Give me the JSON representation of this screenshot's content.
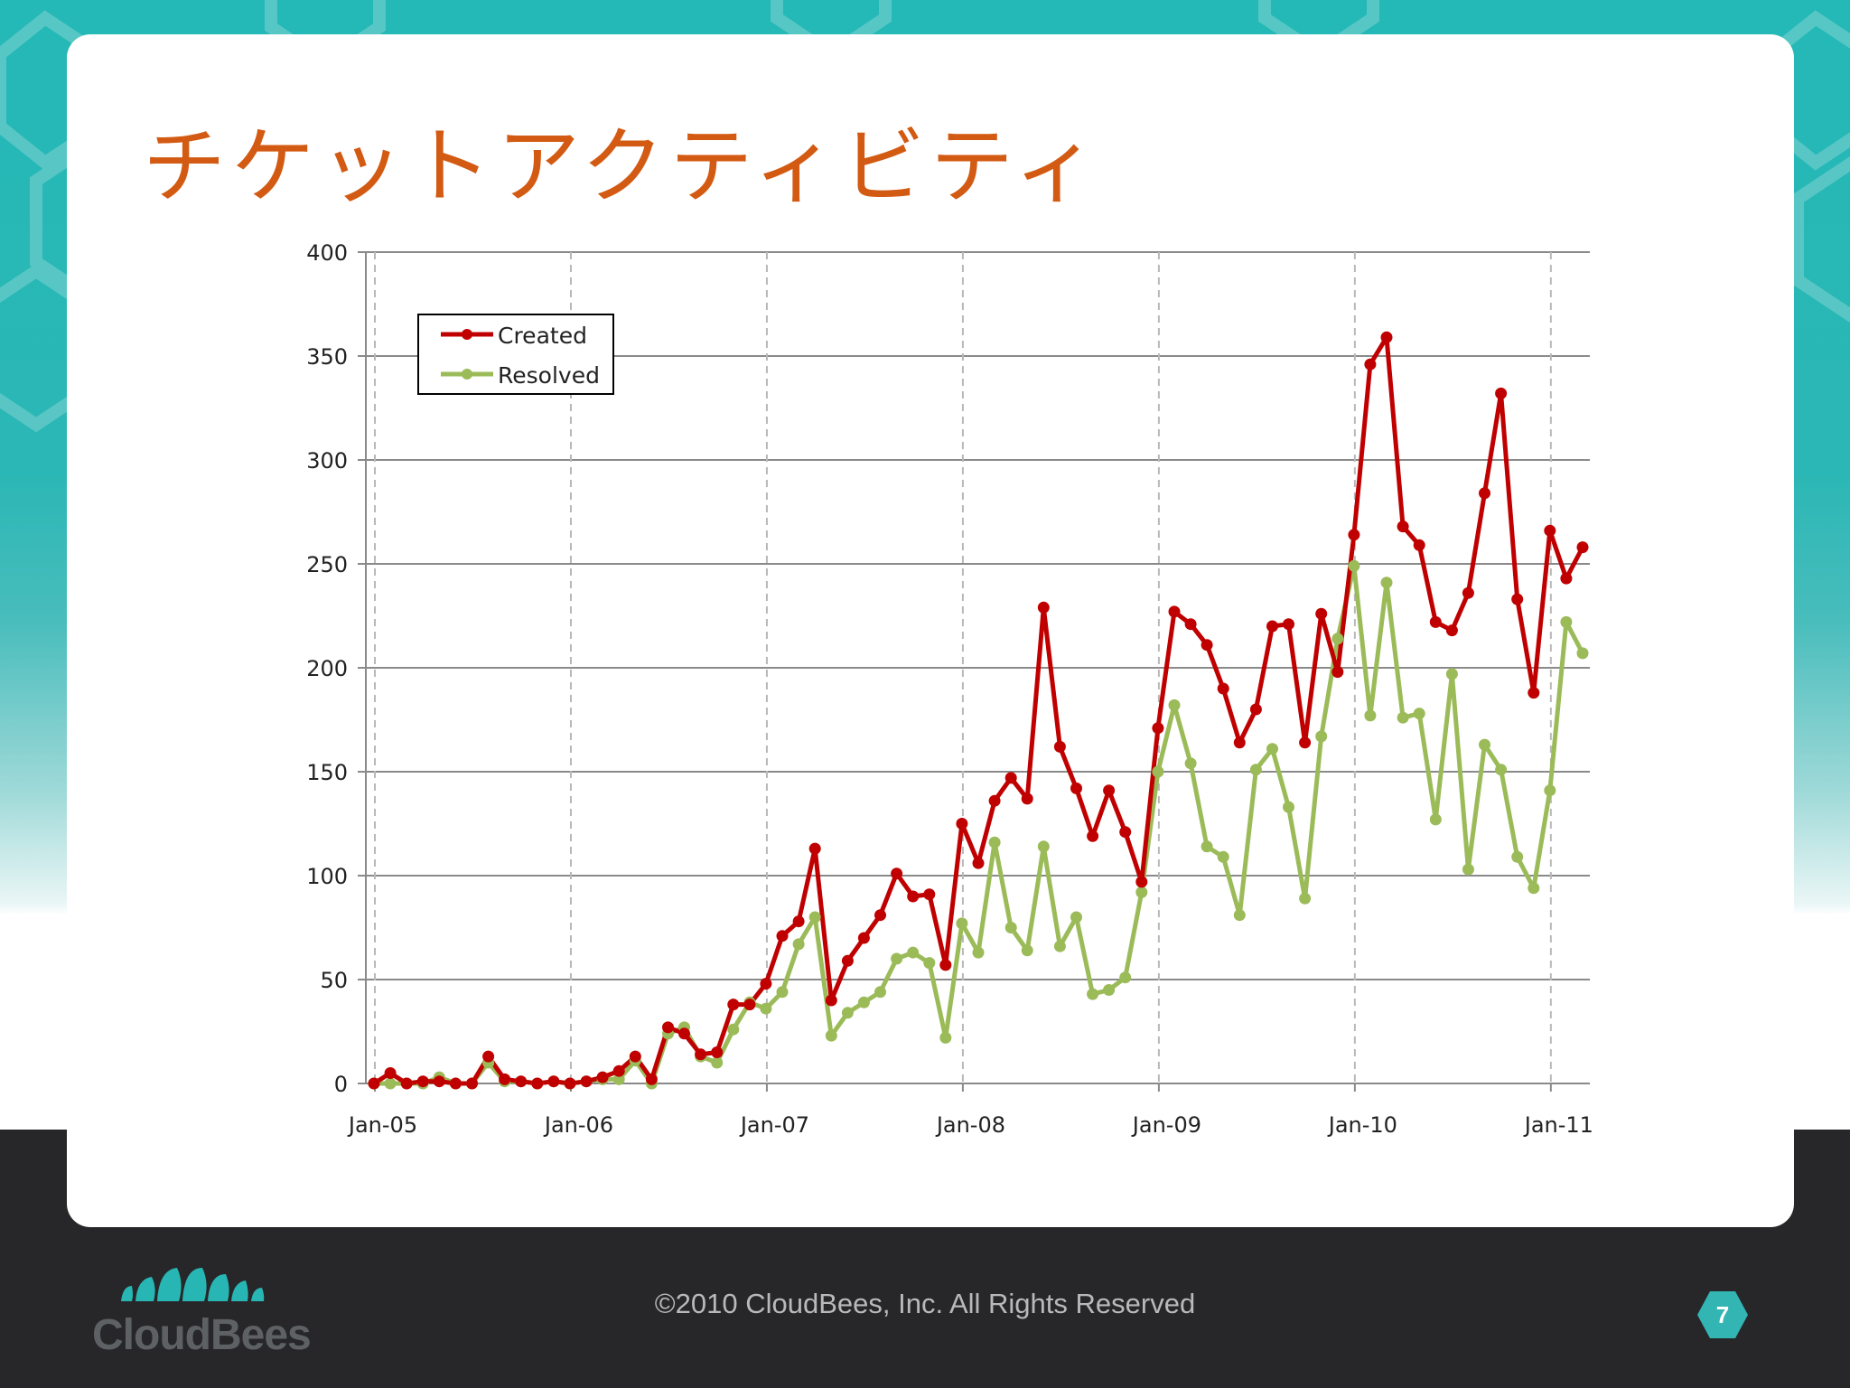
{
  "slide": {
    "title": "チケットアクティビティ",
    "footer": "©2010 CloudBees, Inc. All Rights Reserved",
    "logo_text": "CloudBees",
    "page_number": "7"
  },
  "colors": {
    "created": "#c00000",
    "resolved": "#9bbb59",
    "title": "#d35a12",
    "accent": "#28b6b4"
  },
  "chart_data": {
    "type": "line",
    "title": "",
    "xlabel": "",
    "ylabel": "",
    "ylim": [
      0,
      400
    ],
    "yticks": [
      0,
      50,
      100,
      150,
      200,
      250,
      300,
      350,
      400
    ],
    "x_tick_labels": [
      "Jan-05",
      "Jan-06",
      "Jan-07",
      "Jan-08",
      "Jan-09",
      "Jan-10",
      "Jan-11"
    ],
    "x_tick_index": [
      0,
      12,
      24,
      36,
      48,
      60,
      72
    ],
    "legend_position": "top-left",
    "series": [
      {
        "name": "Created",
        "color": "#c00000",
        "values": [
          0,
          5,
          0,
          1,
          1,
          0,
          0,
          13,
          2,
          1,
          0,
          1,
          0,
          1,
          3,
          6,
          13,
          2,
          27,
          24,
          14,
          15,
          38,
          38,
          48,
          71,
          78,
          113,
          40,
          59,
          70,
          81,
          101,
          90,
          91,
          57,
          125,
          106,
          136,
          147,
          137,
          229,
          162,
          142,
          119,
          141,
          121,
          97,
          171,
          227,
          221,
          211,
          190,
          164,
          180,
          220,
          221,
          164,
          226,
          198,
          264,
          346,
          359,
          268,
          259,
          222,
          218,
          236,
          284,
          332,
          233,
          188,
          266,
          243,
          258
        ]
      },
      {
        "name": "Resolved",
        "color": "#9bbb59",
        "values": [
          0,
          0,
          0,
          0,
          3,
          0,
          0,
          10,
          1,
          1,
          0,
          1,
          0,
          1,
          2,
          2,
          11,
          0,
          24,
          27,
          13,
          10,
          26,
          39,
          36,
          44,
          67,
          80,
          23,
          34,
          39,
          44,
          60,
          63,
          58,
          22,
          77,
          63,
          116,
          75,
          64,
          114,
          66,
          80,
          43,
          45,
          51,
          92,
          150,
          182,
          154,
          114,
          109,
          81,
          151,
          161,
          133,
          89,
          167,
          214,
          249,
          177,
          241,
          176,
          178,
          127,
          197,
          103,
          163,
          151,
          109,
          94,
          141,
          222,
          207
        ]
      }
    ]
  }
}
